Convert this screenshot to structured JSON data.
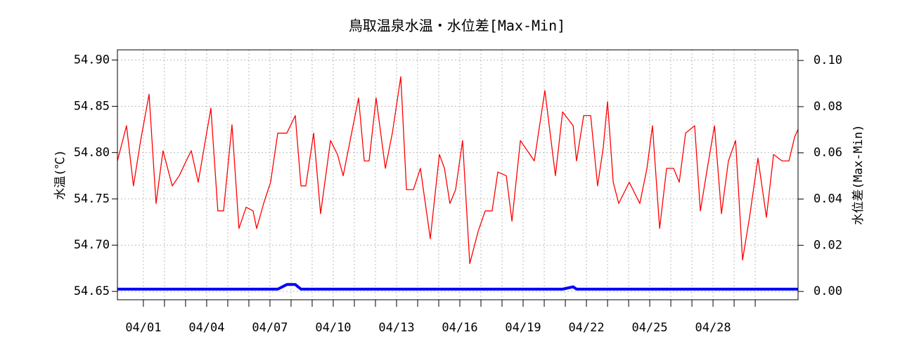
{
  "chart_data": {
    "type": "line",
    "title": "鳥取温泉水温・水位差[Max-Min]",
    "ylabel": "水温(℃)",
    "y2label": "水位差(Max-Min)",
    "x": [
      -0.23,
      0.2,
      0.53,
      0.87,
      1.27,
      1.6,
      1.93,
      2.37,
      2.7,
      3.03,
      3.27,
      3.6,
      4.2,
      4.53,
      4.8,
      5.2,
      5.53,
      5.87,
      6.2,
      6.37,
      6.7,
      7.03,
      7.37,
      7.8,
      8.2,
      8.47,
      8.7,
      9.07,
      9.4,
      9.87,
      10.2,
      10.47,
      10.87,
      11.2,
      11.47,
      11.7,
      12.03,
      12.47,
      12.8,
      13.2,
      13.47,
      13.8,
      14.13,
      14.6,
      15.03,
      15.27,
      15.53,
      15.8,
      16.13,
      16.47,
      16.87,
      17.2,
      17.53,
      17.8,
      18.2,
      18.47,
      18.87,
      19.53,
      20.03,
      20.53,
      20.87,
      21.37,
      21.53,
      21.87,
      22.2,
      22.53,
      22.8,
      23.0,
      23.27,
      23.53,
      24.03,
      24.53,
      24.87,
      25.13,
      25.47,
      25.8,
      26.13,
      26.4,
      26.7,
      27.13,
      27.4,
      27.73,
      28.07,
      28.4,
      28.73,
      29.07,
      29.4,
      29.73,
      30.13,
      30.53,
      30.87,
      31.27,
      31.6,
      31.87,
      32.03
    ],
    "series": [
      {
        "name": "水温",
        "color": "#ff0000",
        "values": [
          54.791,
          54.829,
          54.764,
          54.813,
          54.863,
          54.745,
          54.802,
          54.764,
          54.775,
          54.791,
          54.802,
          54.768,
          54.848,
          54.737,
          54.737,
          54.83,
          54.718,
          54.741,
          54.737,
          54.718,
          54.745,
          54.768,
          54.821,
          54.821,
          54.84,
          54.764,
          54.764,
          54.821,
          54.734,
          54.813,
          54.798,
          54.775,
          54.821,
          54.859,
          54.791,
          54.791,
          54.859,
          54.783,
          54.821,
          54.882,
          54.76,
          54.76,
          54.783,
          54.707,
          54.798,
          54.783,
          54.745,
          54.76,
          54.813,
          54.68,
          54.715,
          54.737,
          54.737,
          54.779,
          54.775,
          54.726,
          54.813,
          54.791,
          54.867,
          54.775,
          54.844,
          54.829,
          54.791,
          54.84,
          54.84,
          54.764,
          54.806,
          54.855,
          54.768,
          54.745,
          54.768,
          54.745,
          54.783,
          54.829,
          54.718,
          54.783,
          54.783,
          54.768,
          54.821,
          54.829,
          54.737,
          54.783,
          54.829,
          54.734,
          54.791,
          54.813,
          54.684,
          54.73,
          54.794,
          54.73,
          54.798,
          54.791,
          54.791,
          54.817,
          54.825
        ]
      },
      {
        "name": "水位差",
        "color": "#0000ff",
        "axis": "y2",
        "values": [
          0.001,
          0.001,
          0.001,
          0.001,
          0.001,
          0.001,
          0.001,
          0.001,
          0.001,
          0.001,
          0.001,
          0.001,
          0.001,
          0.001,
          0.001,
          0.001,
          0.001,
          0.001,
          0.001,
          0.001,
          0.001,
          0.001,
          0.001,
          0.003,
          0.003,
          0.001,
          0.001,
          0.001,
          0.001,
          0.001,
          0.001,
          0.001,
          0.001,
          0.001,
          0.001,
          0.001,
          0.001,
          0.001,
          0.001,
          0.001,
          0.001,
          0.001,
          0.001,
          0.001,
          0.001,
          0.001,
          0.001,
          0.001,
          0.001,
          0.001,
          0.001,
          0.001,
          0.001,
          0.001,
          0.001,
          0.001,
          0.001,
          0.001,
          0.001,
          0.001,
          0.001,
          0.002,
          0.001,
          0.001,
          0.001,
          0.001,
          0.001,
          0.001,
          0.001,
          0.001,
          0.001,
          0.001,
          0.001,
          0.001,
          0.001,
          0.001,
          0.001,
          0.001,
          0.001,
          0.001,
          0.001,
          0.001,
          0.001,
          0.001,
          0.001,
          0.001,
          0.001,
          0.001,
          0.001,
          0.001,
          0.001,
          0.001,
          0.001,
          0.001,
          0.001
        ]
      }
    ],
    "xlim": [
      -0.23,
      32.03
    ],
    "xticks": [
      {
        "value": 1,
        "label": "04/01"
      },
      {
        "value": 4,
        "label": "04/04"
      },
      {
        "value": 7,
        "label": "04/07"
      },
      {
        "value": 10,
        "label": "04/10"
      },
      {
        "value": 13,
        "label": "04/13"
      },
      {
        "value": 16,
        "label": "04/16"
      },
      {
        "value": 19,
        "label": "04/19"
      },
      {
        "value": 22,
        "label": "04/22"
      },
      {
        "value": 25,
        "label": "04/25"
      },
      {
        "value": 28,
        "label": "04/28"
      }
    ],
    "xminor_ticks": [
      2,
      3,
      5,
      6,
      8,
      9,
      11,
      12,
      14,
      15,
      17,
      18,
      20,
      21,
      23,
      24,
      26,
      27,
      29,
      30
    ],
    "ylim": [
      54.641,
      54.911
    ],
    "yticks": [
      {
        "value": 54.65,
        "label": "54.65"
      },
      {
        "value": 54.7,
        "label": "54.70"
      },
      54.75,
      {
        "value": 54.8,
        "label": "54.80"
      },
      54.85,
      {
        "value": 54.9,
        "label": "54.90"
      }
    ],
    "y2lim": [
      -0.0036,
      0.1046
    ],
    "y2ticks": [
      {
        "value": 0,
        "label": "0.00"
      },
      0.02,
      0.04,
      0.06,
      0.08,
      {
        "value": 0.1,
        "label": "0.10"
      }
    ],
    "grid": true
  }
}
